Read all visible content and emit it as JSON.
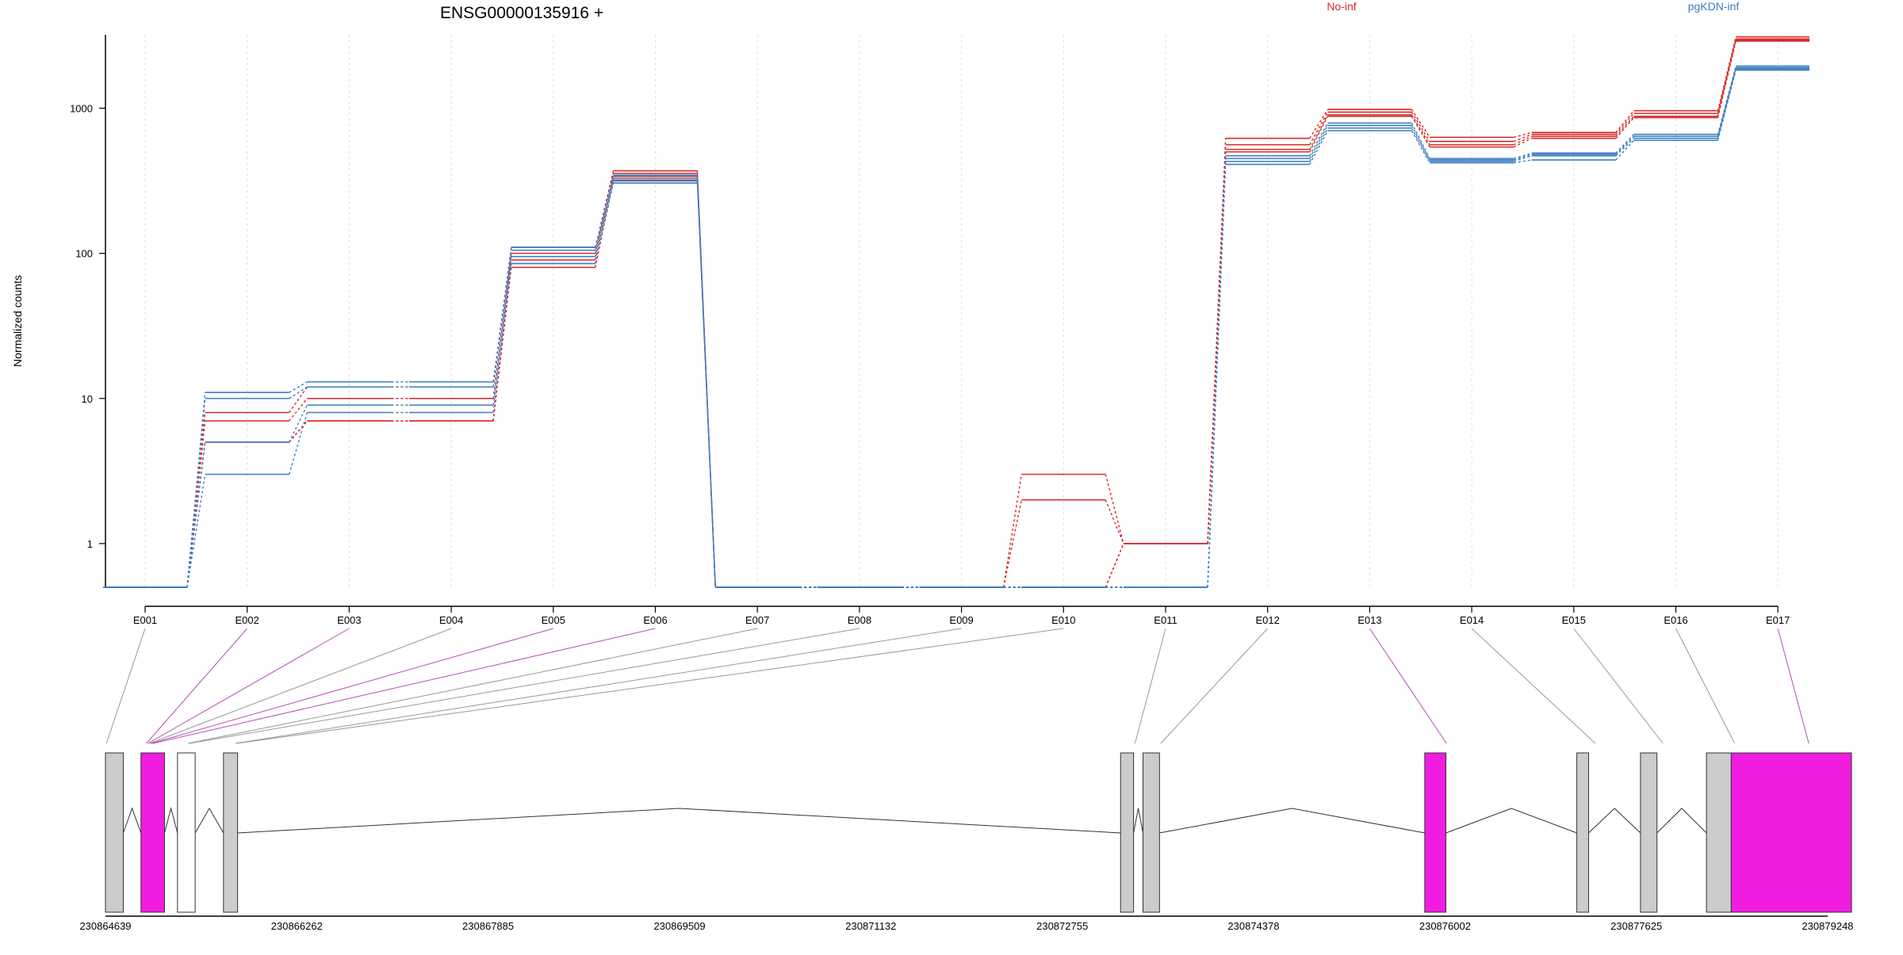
{
  "chart_data": {
    "type": "line",
    "title": "ENSG00000135916 +",
    "ylabel": "Normalized counts",
    "xlabel": "",
    "y_scale": "log",
    "ylim": [
      0.5,
      3200
    ],
    "y_ticks": [
      1,
      10,
      100,
      1000
    ],
    "y_tick_labels": [
      "1",
      "10",
      "100",
      "1000"
    ],
    "grid": "vertical dotted at exons",
    "legend": {
      "placement": "top-right",
      "entries": [
        {
          "name": "No-inf",
          "color": "#d62728"
        },
        {
          "name": "pgKDN-inf",
          "color": "#3a7ebf"
        }
      ]
    },
    "categories": [
      "E001",
      "E002",
      "E003",
      "E004",
      "E005",
      "E006",
      "E007",
      "E008",
      "E009",
      "E010",
      "E011",
      "E012",
      "E013",
      "E014",
      "E015",
      "E016",
      "E017"
    ],
    "series": [
      {
        "group": "No-inf",
        "color": "#d62728",
        "values": [
          0.5,
          8,
          12,
          12,
          110,
          370,
          0.5,
          0.5,
          0.5,
          3,
          1,
          620,
          980,
          630,
          680,
          960,
          3100
        ]
      },
      {
        "group": "No-inf",
        "color": "#d62728",
        "values": [
          0.5,
          7,
          10,
          10,
          100,
          355,
          0.5,
          0.5,
          0.5,
          2,
          1,
          560,
          940,
          590,
          660,
          920,
          3000
        ]
      },
      {
        "group": "No-inf",
        "color": "#d62728",
        "values": [
          0.5,
          5,
          7,
          7,
          90,
          340,
          0.5,
          0.5,
          0.5,
          0.5,
          1,
          520,
          900,
          560,
          640,
          880,
          2950
        ]
      },
      {
        "group": "No-inf",
        "color": "#d62728",
        "values": [
          0.5,
          5,
          7,
          7,
          80,
          320,
          0.5,
          0.5,
          0.5,
          0.5,
          1,
          500,
          880,
          540,
          620,
          860,
          2900
        ]
      },
      {
        "group": "pgKDN-inf",
        "color": "#3a7ebf",
        "values": [
          0.5,
          11,
          13,
          13,
          110,
          345,
          0.5,
          0.5,
          0.5,
          0.5,
          0.5,
          470,
          790,
          450,
          490,
          660,
          1950
        ]
      },
      {
        "group": "pgKDN-inf",
        "color": "#3a7ebf",
        "values": [
          0.5,
          10,
          12,
          12,
          105,
          330,
          0.5,
          0.5,
          0.5,
          0.5,
          0.5,
          450,
          760,
          440,
          480,
          640,
          1900
        ]
      },
      {
        "group": "pgKDN-inf",
        "color": "#3a7ebf",
        "values": [
          0.5,
          5,
          9,
          9,
          95,
          315,
          0.5,
          0.5,
          0.5,
          0.5,
          0.5,
          430,
          730,
          430,
          470,
          620,
          1870
        ]
      },
      {
        "group": "pgKDN-inf",
        "color": "#3a7ebf",
        "values": [
          0.5,
          3,
          8,
          8,
          85,
          305,
          0.5,
          0.5,
          0.5,
          0.5,
          0.5,
          410,
          700,
          420,
          440,
          600,
          1830
        ]
      }
    ],
    "gene_model": {
      "strand": "+",
      "coord_range": [
        230864639,
        230879248
      ],
      "coord_ticks": [
        230864639,
        230866262,
        230867885,
        230869509,
        230871132,
        230872755,
        230874378,
        230876002,
        230877625,
        230879248
      ],
      "exon_boxes": [
        {
          "start": 230864639,
          "end": 230864790,
          "color": "#cccccc",
          "exon": "E001"
        },
        {
          "start": 230864940,
          "end": 230865140,
          "color": "#f01de0",
          "exon": "E002-E006"
        },
        {
          "start": 230865250,
          "end": 230865400,
          "color": "#ffffff",
          "exon": "E007-E008"
        },
        {
          "start": 230865640,
          "end": 230865760,
          "color": "#cccccc",
          "exon": "E009-E010"
        },
        {
          "start": 230873250,
          "end": 230873360,
          "color": "#cccccc",
          "exon": "E011"
        },
        {
          "start": 230873440,
          "end": 230873580,
          "color": "#cccccc",
          "exon": "E012"
        },
        {
          "start": 230875830,
          "end": 230876010,
          "color": "#f01de0",
          "exon": "E013"
        },
        {
          "start": 230877120,
          "end": 230877220,
          "color": "#cccccc",
          "exon": "E014"
        },
        {
          "start": 230877660,
          "end": 230877800,
          "color": "#cccccc",
          "exon": "E015"
        },
        {
          "start": 230878220,
          "end": 230878430,
          "color": "#cccccc",
          "exon": "E016"
        },
        {
          "start": 230878430,
          "end": 230879450,
          "color": "#f01de0",
          "exon": "E017"
        }
      ],
      "link_highlight": [
        "E002",
        "E003",
        "E005",
        "E006",
        "E013",
        "E017"
      ]
    }
  }
}
